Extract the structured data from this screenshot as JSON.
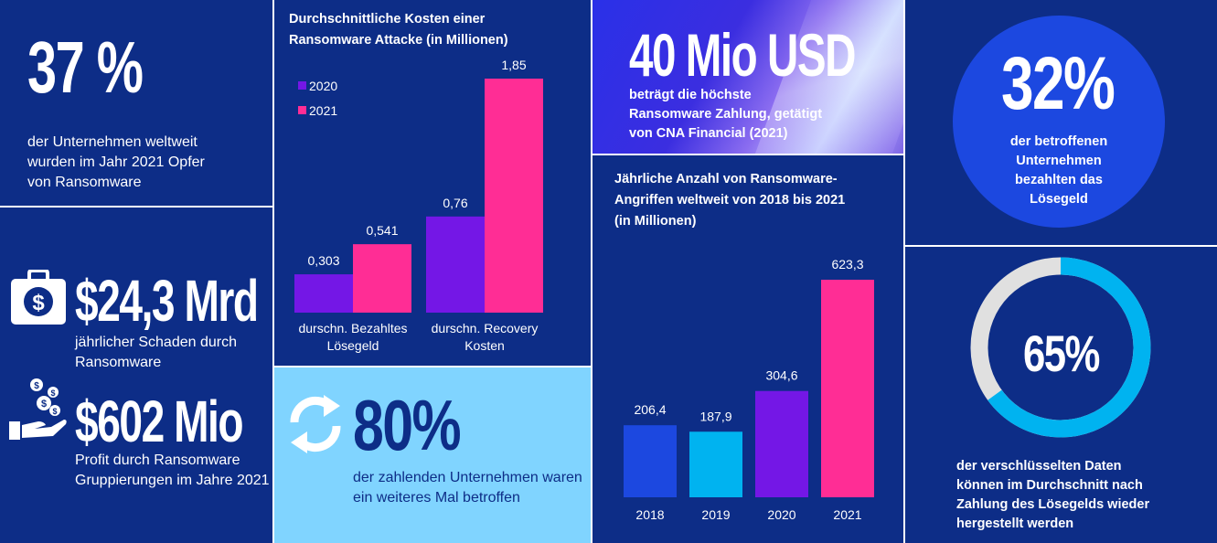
{
  "stat_37": {
    "value": "37 %",
    "text_lines": [
      "der Unternehmen weltweit",
      "wurden im Jahr 2021 Opfer",
      "von Ransomware"
    ]
  },
  "stat_damage": {
    "value": "$24,3 Mrd",
    "text_lines": [
      "jährlicher Schaden durch",
      "Ransomware"
    ],
    "icon": "money-bag-icon"
  },
  "stat_profit": {
    "value": "$602 Mio",
    "text_lines": [
      "Profit durch Ransomware",
      "Gruppierungen im Jahre 2021"
    ],
    "icon": "hand-money-icon"
  },
  "stat_40": {
    "value": "40 Mio USD",
    "text_lines": [
      "beträgt die höchste",
      "Ransomware Zahlung, getätigt",
      "von CNA Financial (2021)"
    ]
  },
  "stat_32": {
    "value": "32%",
    "text_lines": [
      "der betroffenen",
      "Unternehmen",
      "bezahlten das",
      "Lösegeld"
    ]
  },
  "stat_80": {
    "value": "80%",
    "text_lines": [
      "der zahlenden Unternehmen waren",
      "ein weiteres Mal betroffen"
    ],
    "icon": "refresh-arrows-icon"
  },
  "stat_65": {
    "value": "65%",
    "fraction": 0.65,
    "text_lines": [
      "der verschlüsselten Daten",
      "können im Durchschnitt nach",
      "Zahlung des Lösegelds wieder",
      "hergestellt werden"
    ]
  },
  "colors": {
    "navy": "#0d2d87",
    "purple": "#7417e6",
    "pink": "#ff2d95",
    "blue": "#1c48e0",
    "cyan": "#00b3f0",
    "light_cyan": "#80d4ff",
    "dark_blue_text": "#0d2d87",
    "ring_grey": "#e0e0e0"
  },
  "chart_data": [
    {
      "type": "bar",
      "title_lines": [
        "Durchschnittliche Kosten einer",
        "Ransomware Attacke (in Millionen)"
      ],
      "categories": [
        "durschn. Bezahltes Lösegeld",
        "durschn. Recovery Kosten"
      ],
      "category_lines": [
        [
          "durschn. Bezahltes",
          "Lösegeld"
        ],
        [
          "durschn. Recovery",
          "Kosten"
        ]
      ],
      "series": [
        {
          "name": "2020",
          "values": [
            0.303,
            0.76
          ],
          "labels": [
            "0,303",
            "0,76"
          ],
          "color": "#7417e6"
        },
        {
          "name": "2021",
          "values": [
            0.541,
            1.85
          ],
          "labels": [
            "0,541",
            "1,85"
          ],
          "color": "#ff2d95"
        }
      ],
      "ylim": [
        0,
        1.85
      ],
      "legend": "top-left",
      "grid": false
    },
    {
      "type": "bar",
      "title_lines": [
        "Jährliche Anzahl von Ransomware-",
        "Angriffen weltweit von 2018 bis 2021",
        "(in Millionen)"
      ],
      "categories": [
        "2018",
        "2019",
        "2020",
        "2021"
      ],
      "values": [
        206.4,
        187.9,
        304.6,
        623.3
      ],
      "labels": [
        "206,4",
        "187,9",
        "304,6",
        "623,3"
      ],
      "colors": [
        "#1c48e0",
        "#00b3f0",
        "#7417e6",
        "#ff2d95"
      ],
      "ylim": [
        0,
        623.3
      ],
      "grid": false
    }
  ]
}
